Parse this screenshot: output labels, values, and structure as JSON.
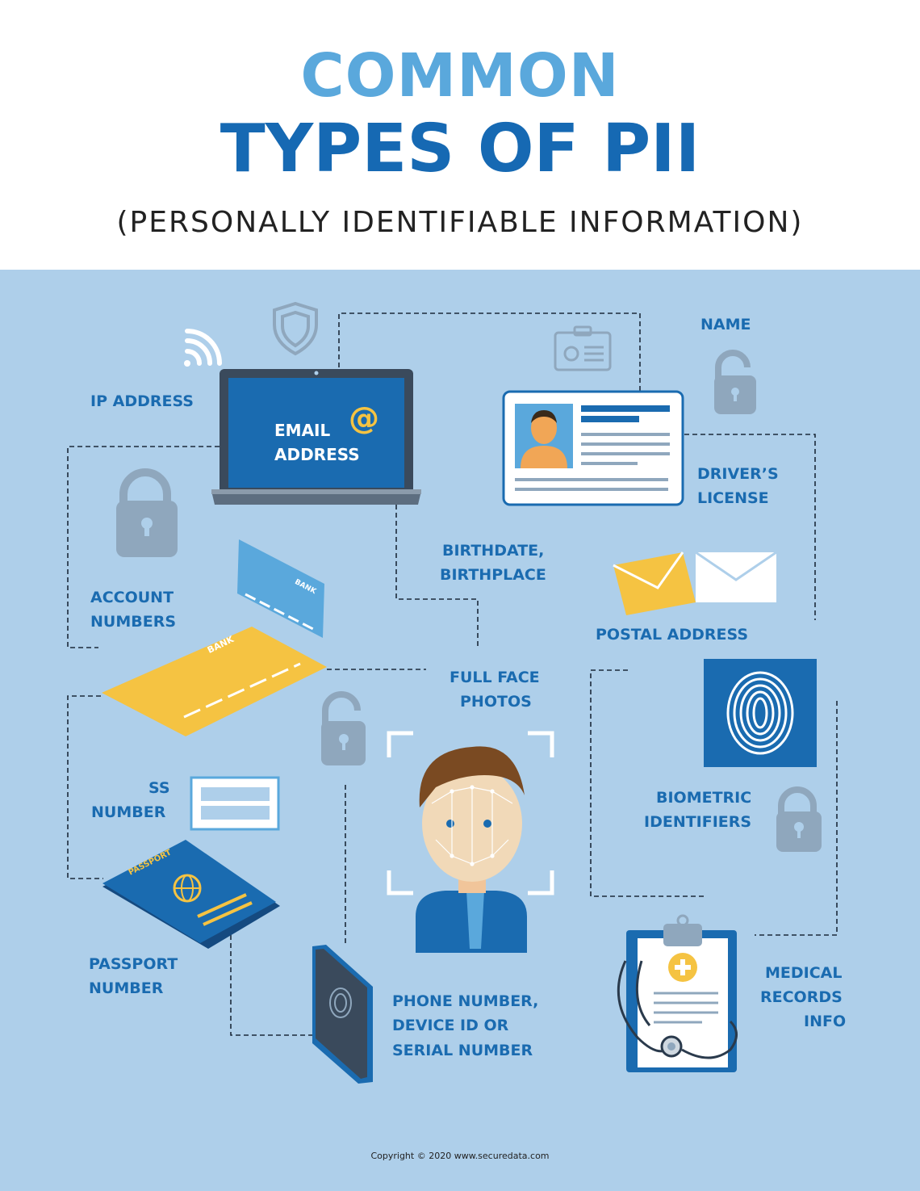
{
  "header": {
    "title_line1": "COMMON",
    "title_line2": "TYPES OF PII",
    "subtitle": "(PERSONALLY IDENTIFIABLE INFORMATION)"
  },
  "labels": {
    "ip_address": "IP ADDRESS",
    "email_line1": "EMAIL",
    "email_line2": "ADDRESS",
    "email_symbol": "@",
    "name": "NAME",
    "drivers_license_line1": "DRIVER’S",
    "drivers_license_line2": "LICENSE",
    "birth_line1": "BIRTHDATE,",
    "birth_line2": "BIRTHPLACE",
    "account_line1": "ACCOUNT",
    "account_line2": "NUMBERS",
    "postal_address": "POSTAL ADDRESS",
    "face_line1": "FULL FACE",
    "face_line2": "PHOTOS",
    "ss_line1": "SS",
    "ss_line2": "NUMBER",
    "biometric_line1": "BIOMETRIC",
    "biometric_line2": "IDENTIFIERS",
    "passport_line1": "PASSPORT",
    "passport_line2": "NUMBER",
    "phone_line1": "PHONE NUMBER,",
    "phone_line2": "DEVICE ID OR",
    "phone_line3": "SERIAL NUMBER",
    "medical_line1": "MEDICAL",
    "medical_line2": "RECORDS",
    "medical_line3": "INFO",
    "bank_card_text": "BANK",
    "passport_cover_text": "PASSPORT"
  },
  "footer": {
    "copyright": "Copyright © 2020 www.securedata.com"
  },
  "colors": {
    "background_panel": "#aecfea",
    "title_light_blue": "#5aa8dc",
    "title_dark_blue": "#1669b3",
    "label_blue": "#1a6bb0",
    "accent_yellow": "#f5c342",
    "icon_gray": "#8fa7bd"
  },
  "icons": [
    "wifi-icon",
    "shield-icon",
    "id-badge-icon",
    "padlock-icon",
    "laptop-icon",
    "id-card-icon",
    "envelope-icon",
    "bank-card-icon",
    "fingerprint-icon",
    "face-scan-icon",
    "passport-icon",
    "smartphone-icon",
    "clipboard-icon",
    "stethoscope-icon"
  ]
}
